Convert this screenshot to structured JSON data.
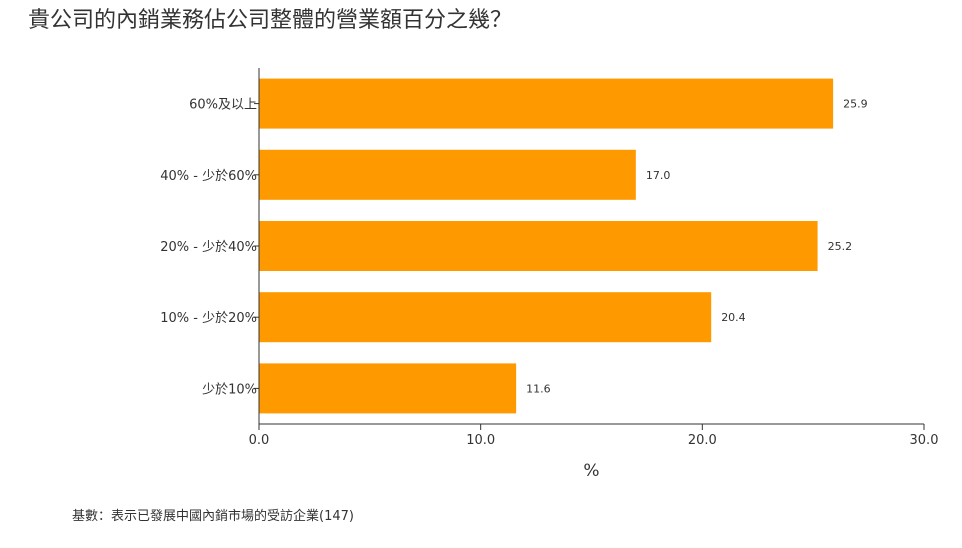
{
  "chart_data": {
    "type": "bar",
    "orientation": "horizontal",
    "title": "貴公司的內銷業務佔公司整體的營業額百分之幾？",
    "categories": [
      "60%及以上",
      "40% - 少於60%",
      "20% - 少於40%",
      "10% - 少於20%",
      "少於10%"
    ],
    "values": [
      25.9,
      17.0,
      25.2,
      20.4,
      11.6
    ],
    "value_labels": [
      "25.9",
      "17.0",
      "25.2",
      "20.4",
      "11.6"
    ],
    "xlabel": "%",
    "ylabel": "",
    "xlim": [
      0,
      30
    ],
    "xticks": [
      0,
      10,
      20,
      30
    ],
    "xtick_labels": [
      "0.0",
      "10.0",
      "20.0",
      "30.0"
    ],
    "bar_color": "#ff9900",
    "grid": false,
    "legend": "none"
  },
  "footnote": "基數：表示已發展中國內銷市場的受訪企業(147)"
}
